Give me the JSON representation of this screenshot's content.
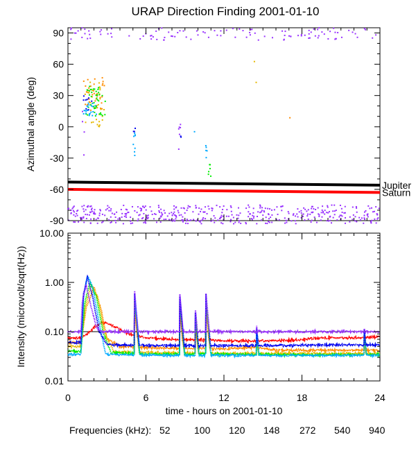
{
  "title": "URAP Direction Finding  2001-01-10",
  "chart_data": [
    {
      "type": "scatter",
      "panel": "azimuth",
      "ylabel": "Azimuthal angle (deg)",
      "xlim": [
        0,
        24
      ],
      "ylim": [
        -90,
        95
      ],
      "yticks": [
        90,
        60,
        30,
        0,
        -30,
        -60,
        -90
      ],
      "reference_lines": [
        {
          "name": "Jupiter",
          "color": "#000000",
          "x": [
            0,
            24
          ],
          "y": [
            -53,
            -56
          ]
        },
        {
          "name": "Saturn",
          "color": "#ff0000",
          "x": [
            0,
            24
          ],
          "y": [
            -60,
            -63
          ]
        }
      ],
      "point_groups": [
        {
          "frequency_khz": 940,
          "x_range": [
            0,
            24
          ],
          "y_range": [
            83,
            95
          ],
          "approx_points": 110
        },
        {
          "frequency_khz": 940,
          "x_range": [
            0,
            24
          ],
          "y_range": [
            -93,
            -75
          ],
          "approx_points": 460
        },
        {
          "frequency_khz": 100,
          "x_range": [
            1.2,
            2.8
          ],
          "y_range": [
            15,
            48
          ],
          "approx_points": 35
        },
        {
          "frequency_khz": 120,
          "x_range": [
            1.3,
            2.9
          ],
          "y_range": [
            0,
            45
          ],
          "approx_points": 30
        },
        {
          "frequency_khz": 148,
          "x_range": [
            1.4,
            2.9
          ],
          "y_range": [
            10,
            40
          ],
          "approx_points": 40
        },
        {
          "frequency_khz": 272,
          "x_range": [
            1.2,
            2.2
          ],
          "y_range": [
            10,
            25
          ],
          "approx_points": 22
        },
        {
          "frequency_khz": 540,
          "x_range": [
            1.2,
            1.9
          ],
          "y_range": [
            15,
            30
          ],
          "approx_points": 8
        },
        {
          "frequency_khz": 272,
          "x_range": [
            5.0,
            5.2
          ],
          "y_range": [
            -28,
            -5
          ],
          "approx_points": 8
        },
        {
          "frequency_khz": 540,
          "x_range": [
            5.0,
            5.2
          ],
          "y_range": [
            -5,
            2
          ],
          "approx_points": 3
        },
        {
          "frequency_khz": 940,
          "x_range": [
            8.5,
            8.7
          ],
          "y_range": [
            -22,
            5
          ],
          "approx_points": 6
        },
        {
          "frequency_khz": 540,
          "x_range": [
            8.5,
            8.7
          ],
          "y_range": [
            -10,
            -8
          ],
          "approx_points": 2
        },
        {
          "frequency_khz": 272,
          "x_range": [
            9.7,
            9.8
          ],
          "y_range": [
            -5,
            -3
          ],
          "approx_points": 1
        },
        {
          "frequency_khz": 272,
          "x_range": [
            10.5,
            10.7
          ],
          "y_range": [
            -35,
            -18
          ],
          "approx_points": 5
        },
        {
          "frequency_khz": 148,
          "x_range": [
            10.8,
            11.0
          ],
          "y_range": [
            -48,
            -35
          ],
          "approx_points": 6
        },
        {
          "frequency_khz": 120,
          "x_range": [
            14.3,
            14.6
          ],
          "y_range": [
            38,
            67
          ],
          "approx_points": 2
        },
        {
          "frequency_khz": 100,
          "x_range": [
            17.0,
            17.1
          ],
          "y_range": [
            8,
            9
          ],
          "approx_points": 1
        },
        {
          "frequency_khz": 940,
          "x_range": [
            1.1,
            1.3
          ],
          "y_range": [
            -30,
            20
          ],
          "approx_points": 4
        }
      ]
    },
    {
      "type": "line",
      "panel": "intensity",
      "ylabel": "Intensity (microvolt/sqrt(Hz))",
      "xlabel": "time - hours on 2001-01-10",
      "xlim": [
        0,
        24
      ],
      "xticks": [
        0,
        6,
        12,
        18,
        24
      ],
      "ylim": [
        0.01,
        10.0
      ],
      "yscale": "log",
      "yticks": [
        "10.00",
        "1.00",
        "0.10",
        "0.01"
      ],
      "reference_line": {
        "y": 0.1,
        "color": "#000000"
      },
      "series": [
        {
          "frequency_khz": 52,
          "color": "#ff0000",
          "x": [
            0,
            1,
            1.5,
            2,
            2.5,
            3,
            3.5,
            4,
            4.5,
            5,
            6,
            8,
            10,
            12,
            14,
            16,
            18,
            19,
            20,
            22,
            24
          ],
          "y": [
            0.075,
            0.075,
            0.09,
            0.12,
            0.15,
            0.15,
            0.13,
            0.11,
            0.095,
            0.085,
            0.075,
            0.07,
            0.068,
            0.065,
            0.065,
            0.066,
            0.068,
            0.074,
            0.075,
            0.075,
            0.078
          ]
        },
        {
          "frequency_khz": 100,
          "color": "#ff8c00",
          "x": [
            0,
            1,
            1.4,
            2,
            2.6,
            3,
            4,
            6,
            8,
            12,
            14.5,
            16,
            20,
            24
          ],
          "y": [
            0.06,
            0.06,
            0.3,
            0.8,
            0.25,
            0.07,
            0.05,
            0.048,
            0.046,
            0.045,
            0.048,
            0.042,
            0.042,
            0.042
          ]
        },
        {
          "frequency_khz": 120,
          "color": "#e6b800",
          "x": [
            0,
            1,
            1.3,
            1.8,
            2.3,
            2.8,
            3.5,
            5,
            8,
            12,
            16,
            20,
            24
          ],
          "y": [
            0.05,
            0.05,
            0.3,
            0.9,
            0.5,
            0.1,
            0.04,
            0.038,
            0.037,
            0.036,
            0.036,
            0.036,
            0.036
          ]
        },
        {
          "frequency_khz": 148,
          "color": "#00ee00",
          "x": [
            0,
            1,
            1.3,
            1.7,
            2.2,
            2.7,
            3.3,
            5,
            8,
            12,
            16,
            20,
            24
          ],
          "y": [
            0.04,
            0.04,
            0.4,
            1.0,
            0.5,
            0.1,
            0.038,
            0.036,
            0.035,
            0.035,
            0.034,
            0.034,
            0.034
          ]
        },
        {
          "frequency_khz": 272,
          "color": "#00aaff",
          "x": [
            0,
            1,
            1.2,
            1.5,
            1.9,
            2.4,
            2.9,
            4,
            8,
            12,
            16,
            20,
            24
          ],
          "y": [
            0.035,
            0.035,
            0.5,
            1.4,
            0.8,
            0.15,
            0.035,
            0.034,
            0.033,
            0.033,
            0.033,
            0.033,
            0.033
          ]
        },
        {
          "frequency_khz": 540,
          "color": "#0000ee",
          "x": [
            0,
            1,
            1.2,
            1.5,
            1.9,
            2.4,
            3,
            4,
            6,
            8,
            12,
            16,
            20,
            24
          ],
          "y": [
            0.06,
            0.06,
            0.6,
            1.3,
            0.5,
            0.1,
            0.055,
            0.054,
            0.053,
            0.052,
            0.052,
            0.052,
            0.054,
            0.054
          ]
        },
        {
          "frequency_khz": 940,
          "color": "#9933ff",
          "x": [
            0,
            1,
            1.1,
            1.4,
            1.8,
            2.2,
            2.6,
            3,
            4,
            8,
            12,
            16,
            20,
            24
          ],
          "y": [
            0.1,
            0.1,
            0.4,
            0.9,
            0.3,
            0.12,
            0.1,
            0.1,
            0.1,
            0.1,
            0.1,
            0.1,
            0.1,
            0.1
          ]
        }
      ],
      "burst_spikes": [
        {
          "x": 5.1,
          "peak": 0.8
        },
        {
          "x": 8.6,
          "peak": 0.6
        },
        {
          "x": 9.8,
          "peak": 0.3
        },
        {
          "x": 10.6,
          "peak": 0.7
        },
        {
          "x": 14.5,
          "peak": 0.15
        },
        {
          "x": 22.8,
          "peak": 0.12
        }
      ]
    }
  ],
  "legend": {
    "label": "Frequencies (kHz):",
    "items": [
      {
        "text": "52",
        "color": "#ff0000"
      },
      {
        "text": "100",
        "color": "#ff8c00"
      },
      {
        "text": "120",
        "color": "#e6b800"
      },
      {
        "text": "148",
        "color": "#00ee00"
      },
      {
        "text": "272",
        "color": "#00aaff"
      },
      {
        "text": "540",
        "color": "#0000ee"
      },
      {
        "text": "940",
        "color": "#9933ff"
      }
    ]
  }
}
